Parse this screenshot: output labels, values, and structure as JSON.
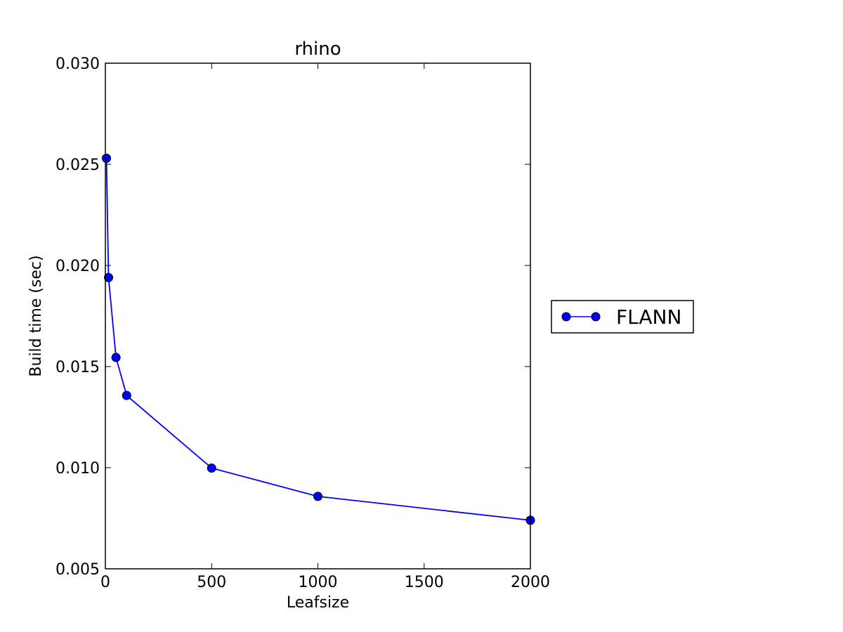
{
  "chart_data": {
    "type": "line",
    "title": "rhino",
    "xlabel": "Leafsize",
    "ylabel": "Build time (sec)",
    "xlim": [
      0,
      2000
    ],
    "ylim": [
      0.005,
      0.03
    ],
    "xticks": [
      0,
      500,
      1000,
      1500,
      2000
    ],
    "xtick_labels": [
      "0",
      "500",
      "1000",
      "1500",
      "2000"
    ],
    "yticks": [
      0.005,
      0.01,
      0.015,
      0.02,
      0.025,
      0.03
    ],
    "ytick_labels": [
      "0.005",
      "0.010",
      "0.015",
      "0.020",
      "0.025",
      "0.030"
    ],
    "grid": false,
    "legend_position": "outside-right",
    "series": [
      {
        "name": "FLANN",
        "color": "#0000ff",
        "marker": "circle",
        "x": [
          5,
          15,
          50,
          100,
          500,
          1000,
          2000
        ],
        "y": [
          0.0253,
          0.0194,
          0.01545,
          0.01357,
          0.00998,
          0.00858,
          0.0074
        ]
      }
    ]
  }
}
